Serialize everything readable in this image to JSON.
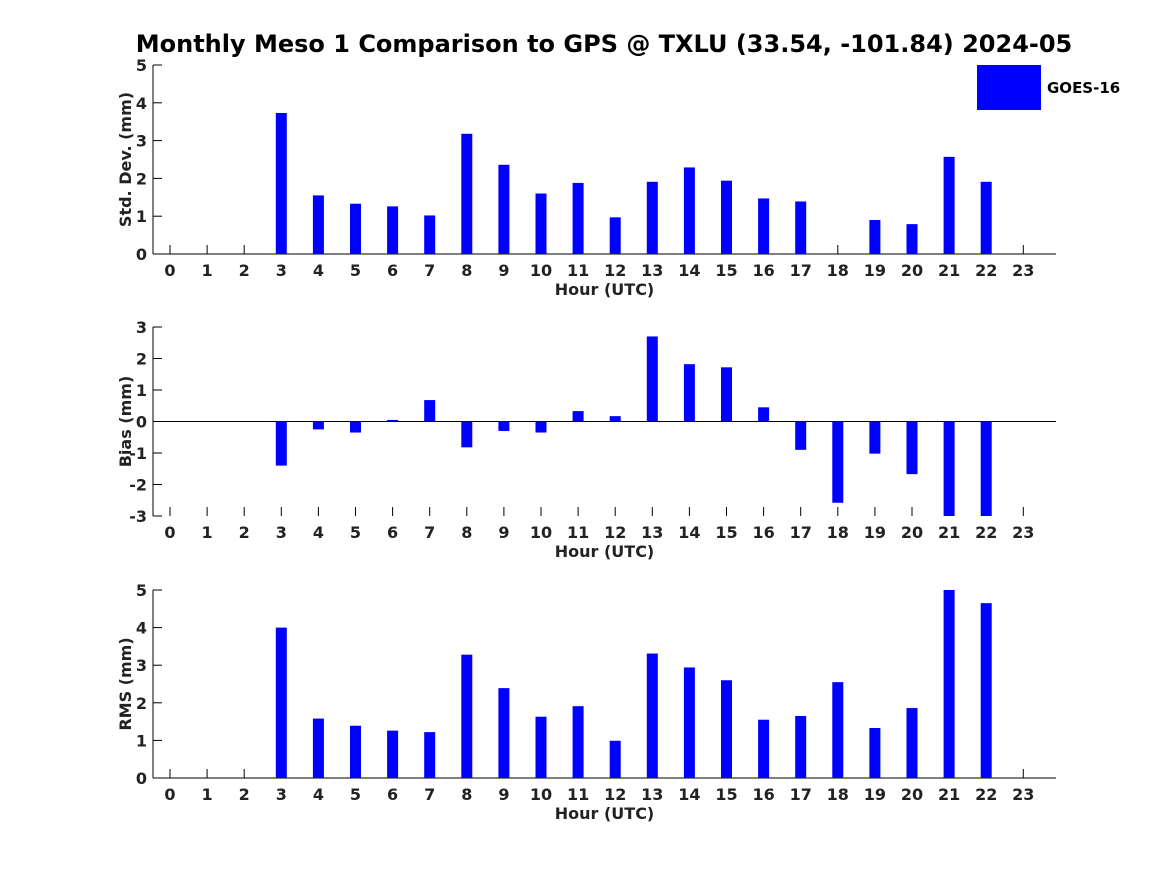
{
  "chart_title": "Monthly Meso 1 Comparison to GPS @ TXLU (33.54, -101.84) 2024-05",
  "legend": {
    "label": "GOES-16",
    "color": "#0000FF"
  },
  "chart_data": [
    {
      "type": "bar",
      "xlabel": "Hour (UTC)",
      "ylabel": "Std. Dev. (mm)",
      "ylim": [
        0,
        5
      ],
      "yticks": [
        "0",
        "1",
        "2",
        "3",
        "4",
        "5"
      ],
      "categories": [
        "0",
        "1",
        "2",
        "3",
        "4",
        "5",
        "6",
        "7",
        "8",
        "9",
        "10",
        "11",
        "12",
        "13",
        "14",
        "15",
        "16",
        "17",
        "18",
        "19",
        "20",
        "21",
        "22",
        "23"
      ],
      "series": [
        {
          "name": "GOES-16",
          "values": [
            null,
            null,
            null,
            3.73,
            1.55,
            1.33,
            1.26,
            1.02,
            3.18,
            2.36,
            1.6,
            1.88,
            0.97,
            1.91,
            2.29,
            1.94,
            1.47,
            1.39,
            null,
            0.9,
            0.79,
            2.57,
            1.91,
            null
          ]
        }
      ],
      "color": "#0000FF"
    },
    {
      "type": "bar",
      "xlabel": "Hour (UTC)",
      "ylabel": "Bias (mm)",
      "ylim": [
        -3,
        3
      ],
      "yticks": [
        "-3",
        "-2",
        "-1",
        "0",
        "1",
        "2",
        "3"
      ],
      "categories": [
        "0",
        "1",
        "2",
        "3",
        "4",
        "5",
        "6",
        "7",
        "8",
        "9",
        "10",
        "11",
        "12",
        "13",
        "14",
        "15",
        "16",
        "17",
        "18",
        "19",
        "20",
        "21",
        "22",
        "23"
      ],
      "series": [
        {
          "name": "GOES-16",
          "values": [
            null,
            null,
            null,
            -1.4,
            -0.25,
            -0.35,
            0.05,
            0.68,
            -0.82,
            -0.3,
            -0.35,
            0.33,
            0.17,
            2.7,
            1.82,
            1.72,
            0.45,
            -0.9,
            -2.58,
            -1.02,
            -1.67,
            -3.0,
            -3.0,
            null
          ]
        }
      ],
      "color": "#0000FF"
    },
    {
      "type": "bar",
      "xlabel": "Hour (UTC)",
      "ylabel": "RMS (mm)",
      "ylim": [
        0,
        5
      ],
      "yticks": [
        "0",
        "1",
        "2",
        "3",
        "4",
        "5"
      ],
      "categories": [
        "0",
        "1",
        "2",
        "3",
        "4",
        "5",
        "6",
        "7",
        "8",
        "9",
        "10",
        "11",
        "12",
        "13",
        "14",
        "15",
        "16",
        "17",
        "18",
        "19",
        "20",
        "21",
        "22",
        "23"
      ],
      "series": [
        {
          "name": "GOES-16",
          "values": [
            null,
            null,
            null,
            4.0,
            1.58,
            1.39,
            1.26,
            1.22,
            3.28,
            2.39,
            1.63,
            1.91,
            0.99,
            3.31,
            2.94,
            2.6,
            1.55,
            1.65,
            2.55,
            1.33,
            1.86,
            5.0,
            4.65,
            null
          ]
        }
      ],
      "color": "#0000FF"
    }
  ]
}
